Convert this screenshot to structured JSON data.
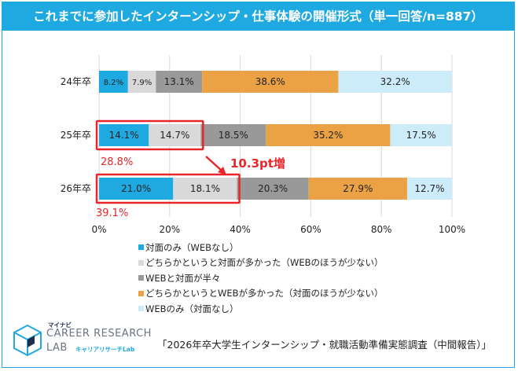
{
  "title": "これまでに参加したインターンシップ・仕事体験の開催形式（単一回答/n=887）",
  "chart_data": {
    "type": "bar",
    "orientation": "horizontal-stacked-100",
    "categories": [
      "24年卒",
      "25年卒",
      "26年卒"
    ],
    "series": [
      {
        "name": "対面のみ（WEBなし）",
        "color": "#1fa9e1",
        "values": [
          8.2,
          14.1,
          21.0
        ],
        "labels": [
          "8.2%",
          "14.1%",
          "21.0%"
        ]
      },
      {
        "name": "どちらかというと対面が多かった（WEBのほうが少ない）",
        "color": "#d9d9d9",
        "values": [
          7.9,
          14.7,
          18.1
        ],
        "labels": [
          "7.9%",
          "14.7%",
          "18.1%"
        ]
      },
      {
        "name": "WEBと対面が半々",
        "color": "#999999",
        "values": [
          13.1,
          18.5,
          20.3
        ],
        "labels": [
          "13.1%",
          "18.5%",
          "20.3%"
        ]
      },
      {
        "name": "どちらかというとWEBが多かった（対面のほうが少ない）",
        "color": "#eba244",
        "values": [
          38.6,
          35.2,
          27.9
        ],
        "labels": [
          "38.6%",
          "35.2%",
          "27.9%"
        ]
      },
      {
        "name": "WEBのみ（対面なし）",
        "color": "#ccecf9",
        "values": [
          32.2,
          17.5,
          12.7
        ],
        "labels": [
          "32.2%",
          "17.5%",
          "12.7%"
        ]
      }
    ],
    "xlim": [
      0,
      100
    ],
    "xticks": [
      "0%",
      "20%",
      "40%",
      "60%",
      "80%",
      "100%"
    ],
    "grid": true,
    "legend_position": "bottom",
    "annotations": {
      "sum25": "28.8%",
      "sum26": "39.1%",
      "increase": "10.3pt増",
      "highlight_color": "#e8262b"
    }
  },
  "logo": {
    "top": "マイナビ",
    "line1": "CAREER RESEARCH",
    "line2": "LAB",
    "sub": "キャリアリサーチLab"
  },
  "source": "「2026年卒大学生インターンシップ・就職活動準備実態調査（中間報告）」"
}
